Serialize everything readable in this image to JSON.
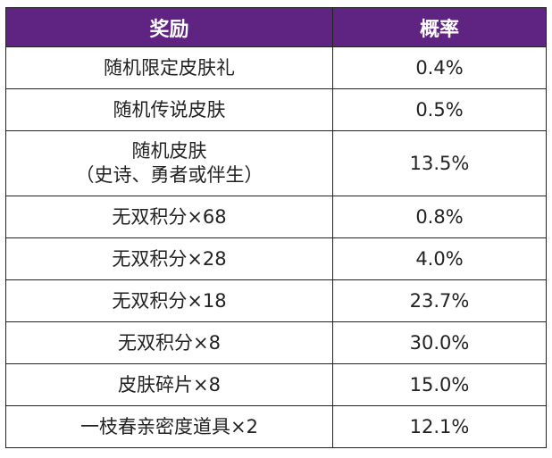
{
  "header": {
    "reward": "奖励",
    "probability": "概率",
    "header_color": "#5f2382"
  },
  "rows": [
    {
      "reward": "随机限定皮肤礼",
      "probability": "0.4%"
    },
    {
      "reward": "随机传说皮肤",
      "probability": "0.5%"
    },
    {
      "reward": "随机皮肤",
      "reward_note": "（史诗、勇者或伴生）",
      "probability": "13.5%"
    },
    {
      "reward": "无双积分×68",
      "probability": "0.8%"
    },
    {
      "reward": "无双积分×28",
      "probability": "4.0%"
    },
    {
      "reward": "无双积分×18",
      "probability": "23.7%"
    },
    {
      "reward": "无双积分×8",
      "probability": "30.0%"
    },
    {
      "reward": "皮肤碎片×8",
      "probability": "15.0%"
    },
    {
      "reward": "一枝春亲密度道具×2",
      "probability": "12.1%"
    }
  ]
}
